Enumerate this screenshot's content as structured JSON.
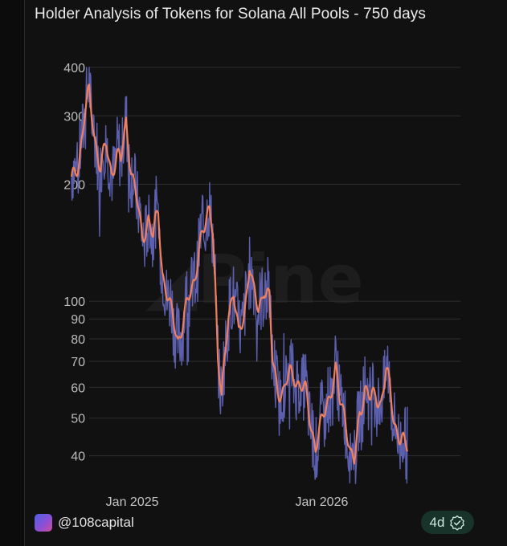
{
  "header": {
    "title": "Holder Analysis of Tokens for Solana All Pools - 750 days"
  },
  "footer": {
    "handle": "@108capital",
    "badge_label": "4d",
    "badge_icon": "verified-check-icon"
  },
  "colors": {
    "raw_series": "#5b5fae",
    "smoothed_series": "#ee7f5f",
    "grid": "#2e2e2e",
    "background": "#111111"
  },
  "chart_data": {
    "type": "line",
    "title": "Holder Analysis of Tokens for Solana All Pools - 750 days",
    "xlabel": "",
    "ylabel": "",
    "y_scale": "log",
    "ylim": [
      33,
      470
    ],
    "x_tick_labels": [
      "Jan 2025",
      "Jan 2026"
    ],
    "y_ticks": [
      40,
      50,
      60,
      70,
      80,
      90,
      100,
      200,
      300,
      400
    ],
    "grid": true,
    "legend": "none",
    "x_range": [
      "2024-09-06",
      "2026-09-25"
    ],
    "anchors": [
      [
        "2024-09-06",
        200
      ],
      [
        "2024-09-20",
        230
      ],
      [
        "2024-10-01",
        300
      ],
      [
        "2024-10-10",
        340
      ],
      [
        "2024-10-20",
        270
      ],
      [
        "2024-11-01",
        220
      ],
      [
        "2024-11-12",
        250
      ],
      [
        "2024-11-22",
        215
      ],
      [
        "2024-12-02",
        240
      ],
      [
        "2024-12-10",
        225
      ],
      [
        "2024-12-20",
        290
      ],
      [
        "2024-12-30",
        220
      ],
      [
        "2025-01-10",
        180
      ],
      [
        "2025-01-20",
        145
      ],
      [
        "2025-02-01",
        165
      ],
      [
        "2025-02-10",
        145
      ],
      [
        "2025-02-20",
        170
      ],
      [
        "2025-02-28",
        120
      ],
      [
        "2025-03-15",
        95
      ],
      [
        "2025-03-30",
        80
      ],
      [
        "2025-04-10",
        90
      ],
      [
        "2025-04-20",
        100
      ],
      [
        "2025-05-01",
        115
      ],
      [
        "2025-05-10",
        140
      ],
      [
        "2025-05-20",
        150
      ],
      [
        "2025-05-30",
        175
      ],
      [
        "2025-06-05",
        160
      ],
      [
        "2025-06-10",
        110
      ],
      [
        "2025-06-15",
        70
      ],
      [
        "2025-06-22",
        55
      ],
      [
        "2025-07-05",
        95
      ],
      [
        "2025-07-15",
        105
      ],
      [
        "2025-07-25",
        80
      ],
      [
        "2025-08-05",
        95
      ],
      [
        "2025-08-15",
        125
      ],
      [
        "2025-08-22",
        105
      ],
      [
        "2025-09-01",
        95
      ],
      [
        "2025-09-12",
        110
      ],
      [
        "2025-09-22",
        100
      ],
      [
        "2025-09-28",
        70
      ],
      [
        "2025-10-08",
        60
      ],
      [
        "2025-10-20",
        58
      ],
      [
        "2025-11-01",
        65
      ],
      [
        "2025-11-10",
        65
      ],
      [
        "2025-11-20",
        60
      ],
      [
        "2025-12-01",
        58
      ],
      [
        "2025-12-10",
        50
      ],
      [
        "2025-12-20",
        42
      ],
      [
        "2026-01-01",
        48
      ],
      [
        "2026-01-10",
        55
      ],
      [
        "2026-01-20",
        60
      ],
      [
        "2026-01-28",
        65
      ],
      [
        "2026-02-05",
        55
      ],
      [
        "2026-02-15",
        52
      ],
      [
        "2026-02-25",
        40
      ],
      [
        "2026-03-05",
        38
      ],
      [
        "2026-03-15",
        52
      ],
      [
        "2026-03-25",
        60
      ],
      [
        "2026-04-05",
        55
      ],
      [
        "2026-04-15",
        58
      ],
      [
        "2026-04-25",
        55
      ],
      [
        "2026-05-05",
        65
      ],
      [
        "2026-05-12",
        60
      ],
      [
        "2026-05-20",
        50
      ],
      [
        "2026-06-01",
        44
      ],
      [
        "2026-06-10",
        42
      ],
      [
        "2026-06-15",
        42
      ]
    ]
  }
}
